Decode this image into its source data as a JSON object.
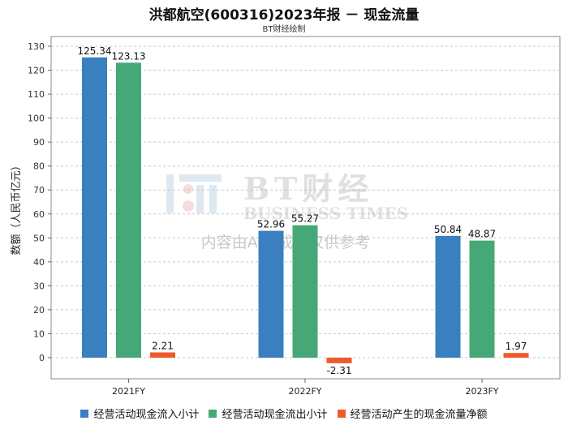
{
  "chart_data": {
    "type": "bar",
    "title": "洪都航空(600316)2023年报 － 现金流量",
    "subtitle": "BT财经绘制",
    "ylabel": "数额（人民币亿元）",
    "xlabel": "",
    "categories": [
      "2021FY",
      "2022FY",
      "2023FY"
    ],
    "series": [
      {
        "name": "经营活动现金流入小计",
        "color": "#3a7fc0",
        "values": [
          125.34,
          52.96,
          50.84
        ],
        "labels": [
          "125.34",
          "52.96",
          "50.84"
        ]
      },
      {
        "name": "经营活动现金流出小计",
        "color": "#45a876",
        "values": [
          123.13,
          55.27,
          48.87
        ],
        "labels": [
          "123.13",
          "55.27",
          "48.87"
        ]
      },
      {
        "name": "经营活动产生的现金流量净额",
        "color": "#ee5a2c",
        "values": [
          2.21,
          -2.31,
          1.97
        ],
        "labels": [
          "2.21",
          "-2.31",
          "1.97"
        ]
      }
    ],
    "ylim": [
      -10,
      130
    ],
    "yticks": [
      0,
      10,
      20,
      30,
      40,
      50,
      60,
      70,
      80,
      90,
      100,
      110,
      120,
      130
    ],
    "grid": true,
    "legend_position": "bottom"
  },
  "watermark": {
    "brand": "BT财经",
    "brand_en": "BUSINESS TIMES",
    "note": "内容由AI生成，仅供参考"
  }
}
